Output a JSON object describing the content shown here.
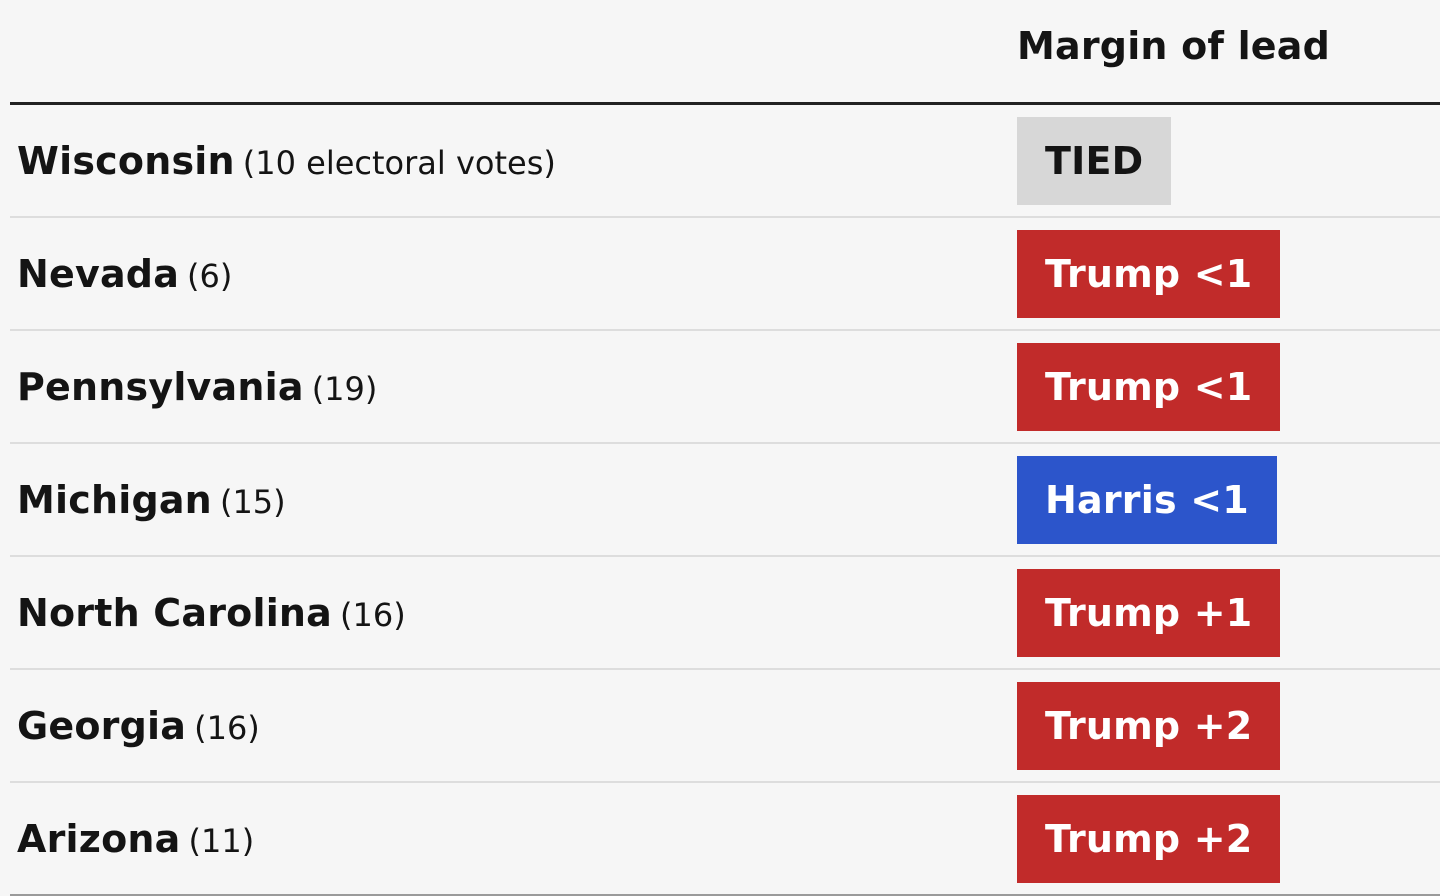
{
  "header": {
    "margin_label": "Margin of lead"
  },
  "rows": [
    {
      "state": "Wisconsin",
      "votes": "(10 electoral votes)",
      "lead": "TIED",
      "bg": "#d7d7d7",
      "fg": "#141414"
    },
    {
      "state": "Nevada",
      "votes": "(6)",
      "lead": "Trump <1",
      "bg": "#c12b2a",
      "fg": "#ffffff"
    },
    {
      "state": "Pennsylvania",
      "votes": "(19)",
      "lead": "Trump <1",
      "bg": "#c12b2a",
      "fg": "#ffffff"
    },
    {
      "state": "Michigan",
      "votes": "(15)",
      "lead": "Harris <1",
      "bg": "#2c55cb",
      "fg": "#ffffff"
    },
    {
      "state": "North Carolina",
      "votes": "(16)",
      "lead": "Trump +1",
      "bg": "#c12b2a",
      "fg": "#ffffff"
    },
    {
      "state": "Georgia",
      "votes": "(16)",
      "lead": "Trump +2",
      "bg": "#c12b2a",
      "fg": "#ffffff"
    },
    {
      "state": "Arizona",
      "votes": "(11)",
      "lead": "Trump +2",
      "bg": "#c12b2a",
      "fg": "#ffffff"
    }
  ]
}
